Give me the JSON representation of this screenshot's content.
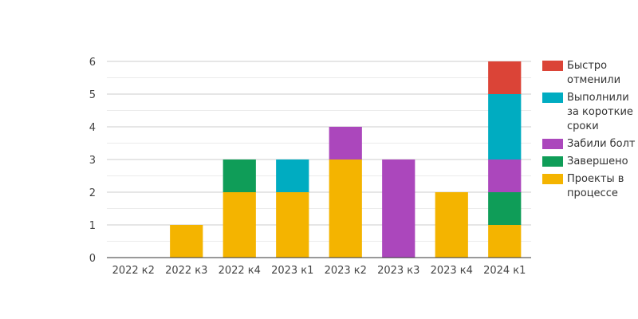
{
  "chart_data": {
    "type": "bar",
    "stacked": true,
    "categories": [
      "2022 к2",
      "2022 к3",
      "2022 к4",
      "2023 к1",
      "2023 к2",
      "2023 к3",
      "2023 к4",
      "2024 к1"
    ],
    "ylim": [
      0,
      6
    ],
    "yticks": [
      0,
      1,
      2,
      3,
      4,
      5,
      6
    ],
    "grid": true,
    "legend_position": "right",
    "series": [
      {
        "name": "Проекты в процессе",
        "color": "#F4B400",
        "values": [
          0,
          1,
          2,
          2,
          3,
          0,
          2,
          1
        ]
      },
      {
        "name": "Завершено",
        "color": "#0F9D58",
        "values": [
          0,
          0,
          1,
          0,
          0,
          0,
          0,
          1
        ]
      },
      {
        "name": "Забили болт",
        "color": "#AB47BC",
        "values": [
          0,
          0,
          0,
          0,
          1,
          3,
          0,
          1
        ]
      },
      {
        "name": "Выполнили за короткие сроки",
        "color": "#00ACC1",
        "values": [
          0,
          0,
          0,
          1,
          0,
          0,
          0,
          2
        ]
      },
      {
        "name": "Быстро отменили",
        "color": "#DB4437",
        "values": [
          0,
          0,
          0,
          0,
          0,
          0,
          0,
          1
        ]
      }
    ]
  }
}
